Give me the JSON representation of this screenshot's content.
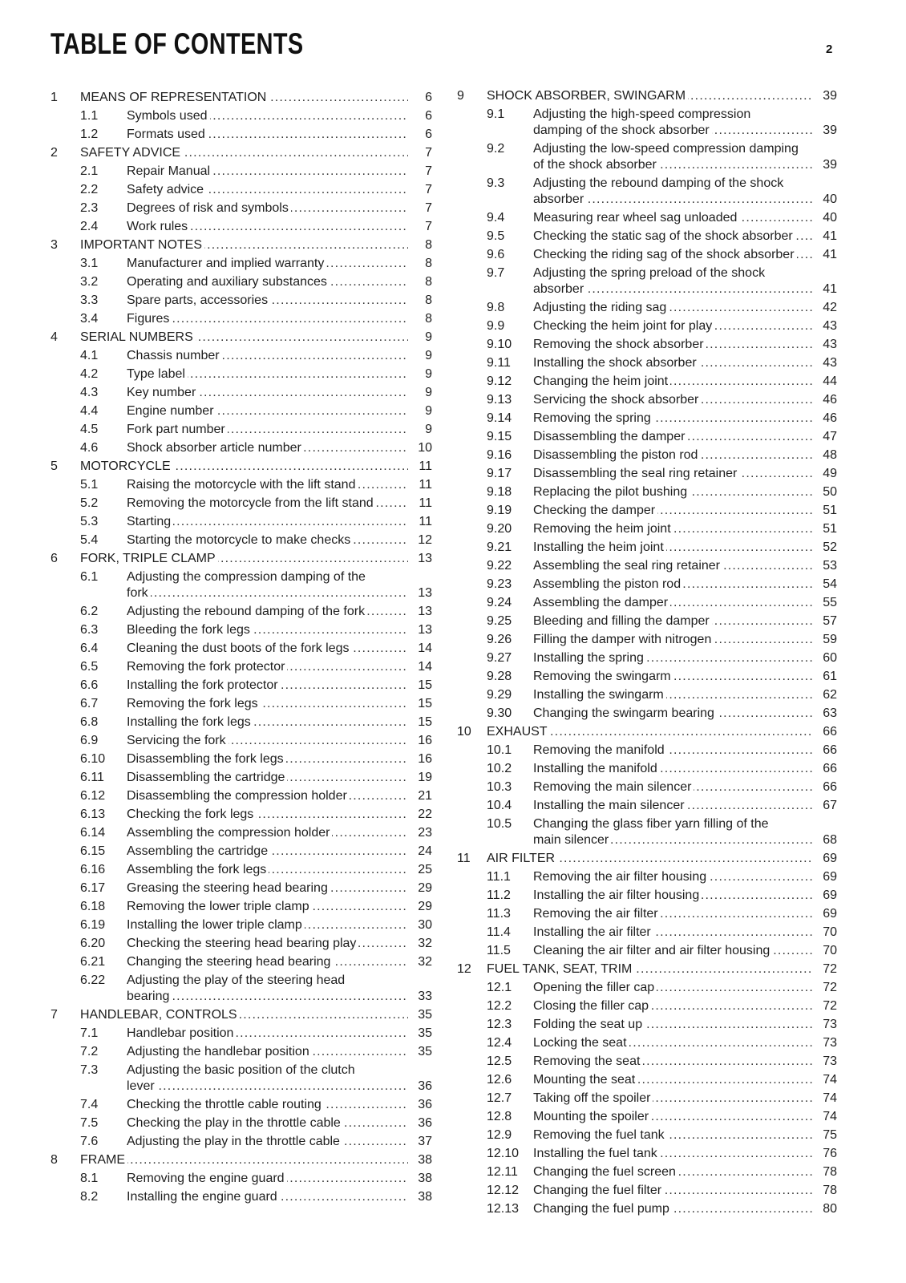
{
  "header": {
    "title": "TABLE OF CONTENTS",
    "page_number": "2"
  },
  "toc": {
    "left": [
      {
        "num": "1",
        "title": "MEANS OF REPRESENTATION",
        "page": "6",
        "level": 1
      },
      {
        "num": "1.1",
        "title": "Symbols used",
        "page": "6",
        "level": 2
      },
      {
        "num": "1.2",
        "title": "Formats used",
        "page": "6",
        "level": 2
      },
      {
        "num": "2",
        "title": "SAFETY ADVICE",
        "page": "7",
        "level": 1
      },
      {
        "num": "2.1",
        "title": "Repair Manual",
        "page": "7",
        "level": 2
      },
      {
        "num": "2.2",
        "title": "Safety advice",
        "page": "7",
        "level": 2
      },
      {
        "num": "2.3",
        "title": "Degrees of risk and symbols",
        "page": "7",
        "level": 2
      },
      {
        "num": "2.4",
        "title": "Work rules",
        "page": "7",
        "level": 2
      },
      {
        "num": "3",
        "title": "IMPORTANT NOTES",
        "page": "8",
        "level": 1
      },
      {
        "num": "3.1",
        "title": "Manufacturer and implied warranty",
        "page": "8",
        "level": 2
      },
      {
        "num": "3.2",
        "title": "Operating and auxiliary substances",
        "page": "8",
        "level": 2
      },
      {
        "num": "3.3",
        "title": "Spare parts, accessories",
        "page": "8",
        "level": 2
      },
      {
        "num": "3.4",
        "title": "Figures",
        "page": "8",
        "level": 2
      },
      {
        "num": "4",
        "title": "SERIAL NUMBERS",
        "page": "9",
        "level": 1
      },
      {
        "num": "4.1",
        "title": "Chassis number",
        "page": "9",
        "level": 2
      },
      {
        "num": "4.2",
        "title": "Type label",
        "page": "9",
        "level": 2
      },
      {
        "num": "4.3",
        "title": "Key number",
        "page": "9",
        "level": 2
      },
      {
        "num": "4.4",
        "title": "Engine number",
        "page": "9",
        "level": 2
      },
      {
        "num": "4.5",
        "title": "Fork part number",
        "page": "9",
        "level": 2
      },
      {
        "num": "4.6",
        "title": "Shock absorber article number",
        "page": "10",
        "level": 2
      },
      {
        "num": "5",
        "title": "MOTORCYCLE",
        "page": "11",
        "level": 1
      },
      {
        "num": "5.1",
        "title": "Raising the motorcycle with the lift stand",
        "page": "11",
        "level": 2
      },
      {
        "num": "5.2",
        "title": "Removing the motorcycle from the lift stand",
        "page": "11",
        "level": 2
      },
      {
        "num": "5.3",
        "title": "Starting",
        "page": "11",
        "level": 2
      },
      {
        "num": "5.4",
        "title": "Starting the motorcycle to make checks",
        "page": "12",
        "level": 2
      },
      {
        "num": "6",
        "title": "FORK, TRIPLE CLAMP",
        "page": "13",
        "level": 1
      },
      {
        "num": "6.1",
        "title": "Adjusting the compression damping of the\nfork",
        "page": "13",
        "level": 2
      },
      {
        "num": "6.2",
        "title": "Adjusting the rebound damping of the fork",
        "page": "13",
        "level": 2
      },
      {
        "num": "6.3",
        "title": "Bleeding the fork legs",
        "page": "13",
        "level": 2
      },
      {
        "num": "6.4",
        "title": "Cleaning the dust boots of the fork legs",
        "page": "14",
        "level": 2
      },
      {
        "num": "6.5",
        "title": "Removing the fork protector",
        "page": "14",
        "level": 2
      },
      {
        "num": "6.6",
        "title": "Installing the fork protector",
        "page": "15",
        "level": 2
      },
      {
        "num": "6.7",
        "title": "Removing the fork legs",
        "page": "15",
        "level": 2
      },
      {
        "num": "6.8",
        "title": "Installing the fork legs",
        "page": "15",
        "level": 2
      },
      {
        "num": "6.9",
        "title": "Servicing the fork",
        "page": "16",
        "level": 2
      },
      {
        "num": "6.10",
        "title": "Disassembling the fork legs",
        "page": "16",
        "level": 2
      },
      {
        "num": "6.11",
        "title": "Disassembling the cartridge",
        "page": "19",
        "level": 2
      },
      {
        "num": "6.12",
        "title": "Disassembling the compression holder",
        "page": "21",
        "level": 2
      },
      {
        "num": "6.13",
        "title": "Checking the fork legs",
        "page": "22",
        "level": 2
      },
      {
        "num": "6.14",
        "title": "Assembling the compression holder",
        "page": "23",
        "level": 2
      },
      {
        "num": "6.15",
        "title": "Assembling the cartridge",
        "page": "24",
        "level": 2
      },
      {
        "num": "6.16",
        "title": "Assembling the fork legs",
        "page": "25",
        "level": 2
      },
      {
        "num": "6.17",
        "title": "Greasing the steering head bearing",
        "page": "29",
        "level": 2
      },
      {
        "num": "6.18",
        "title": "Removing the lower triple clamp",
        "page": "29",
        "level": 2
      },
      {
        "num": "6.19",
        "title": "Installing the lower triple clamp",
        "page": "30",
        "level": 2
      },
      {
        "num": "6.20",
        "title": "Checking the steering head bearing play",
        "page": "32",
        "level": 2
      },
      {
        "num": "6.21",
        "title": "Changing the steering head bearing",
        "page": "32",
        "level": 2
      },
      {
        "num": "6.22",
        "title": "Adjusting the play of the steering head\nbearing",
        "page": "33",
        "level": 2
      },
      {
        "num": "7",
        "title": "HANDLEBAR, CONTROLS",
        "page": "35",
        "level": 1
      },
      {
        "num": "7.1",
        "title": "Handlebar position",
        "page": "35",
        "level": 2
      },
      {
        "num": "7.2",
        "title": "Adjusting the handlebar position",
        "page": "35",
        "level": 2
      },
      {
        "num": "7.3",
        "title": "Adjusting the basic position of the clutch\nlever",
        "page": "36",
        "level": 2
      },
      {
        "num": "7.4",
        "title": "Checking the throttle cable routing",
        "page": "36",
        "level": 2
      },
      {
        "num": "7.5",
        "title": "Checking the play in the throttle cable",
        "page": "36",
        "level": 2
      },
      {
        "num": "7.6",
        "title": "Adjusting the play in the throttle cable",
        "page": "37",
        "level": 2
      },
      {
        "num": "8",
        "title": "FRAME",
        "page": "38",
        "level": 1
      },
      {
        "num": "8.1",
        "title": "Removing the engine guard",
        "page": "38",
        "level": 2
      },
      {
        "num": "8.2",
        "title": "Installing the engine guard",
        "page": "38",
        "level": 2
      }
    ],
    "right": [
      {
        "num": "9",
        "title": "SHOCK ABSORBER, SWINGARM",
        "page": "39",
        "level": 1
      },
      {
        "num": "9.1",
        "title": "Adjusting the high-speed compression\ndamping of the shock absorber",
        "page": "39",
        "level": 2
      },
      {
        "num": "9.2",
        "title": "Adjusting the low-speed compression damping\nof the shock absorber",
        "page": "39",
        "level": 2
      },
      {
        "num": "9.3",
        "title": "Adjusting the rebound damping of the shock\nabsorber",
        "page": "40",
        "level": 2
      },
      {
        "num": "9.4",
        "title": "Measuring rear wheel sag unloaded",
        "page": "40",
        "level": 2
      },
      {
        "num": "9.5",
        "title": "Checking the static sag of the shock absorber",
        "page": "41",
        "level": 2
      },
      {
        "num": "9.6",
        "title": "Checking the riding sag of the shock absorber",
        "page": "41",
        "level": 2
      },
      {
        "num": "9.7",
        "title": "Adjusting the spring preload of the shock\nabsorber",
        "page": "41",
        "level": 2
      },
      {
        "num": "9.8",
        "title": "Adjusting the riding sag",
        "page": "42",
        "level": 2
      },
      {
        "num": "9.9",
        "title": "Checking the heim joint for play",
        "page": "43",
        "level": 2
      },
      {
        "num": "9.10",
        "title": "Removing the shock absorber",
        "page": "43",
        "level": 2
      },
      {
        "num": "9.11",
        "title": "Installing the shock absorber",
        "page": "43",
        "level": 2
      },
      {
        "num": "9.12",
        "title": "Changing the heim joint",
        "page": "44",
        "level": 2
      },
      {
        "num": "9.13",
        "title": "Servicing the shock absorber",
        "page": "46",
        "level": 2
      },
      {
        "num": "9.14",
        "title": "Removing the spring",
        "page": "46",
        "level": 2
      },
      {
        "num": "9.15",
        "title": "Disassembling the damper",
        "page": "47",
        "level": 2
      },
      {
        "num": "9.16",
        "title": "Disassembling the piston rod",
        "page": "48",
        "level": 2
      },
      {
        "num": "9.17",
        "title": "Disassembling the seal ring retainer",
        "page": "49",
        "level": 2
      },
      {
        "num": "9.18",
        "title": "Replacing the pilot bushing",
        "page": "50",
        "level": 2
      },
      {
        "num": "9.19",
        "title": "Checking the damper",
        "page": "51",
        "level": 2
      },
      {
        "num": "9.20",
        "title": "Removing the heim joint",
        "page": "51",
        "level": 2
      },
      {
        "num": "9.21",
        "title": "Installing the heim joint",
        "page": "52",
        "level": 2
      },
      {
        "num": "9.22",
        "title": "Assembling the seal ring retainer",
        "page": "53",
        "level": 2
      },
      {
        "num": "9.23",
        "title": "Assembling the piston rod",
        "page": "54",
        "level": 2
      },
      {
        "num": "9.24",
        "title": "Assembling the damper",
        "page": "55",
        "level": 2
      },
      {
        "num": "9.25",
        "title": "Bleeding and filling the damper",
        "page": "57",
        "level": 2
      },
      {
        "num": "9.26",
        "title": "Filling the damper with nitrogen",
        "page": "59",
        "level": 2
      },
      {
        "num": "9.27",
        "title": "Installing the spring",
        "page": "60",
        "level": 2
      },
      {
        "num": "9.28",
        "title": "Removing the swingarm",
        "page": "61",
        "level": 2
      },
      {
        "num": "9.29",
        "title": "Installing the swingarm",
        "page": "62",
        "level": 2
      },
      {
        "num": "9.30",
        "title": "Changing the swingarm bearing",
        "page": "63",
        "level": 2
      },
      {
        "num": "10",
        "title": "EXHAUST",
        "page": "66",
        "level": 1
      },
      {
        "num": "10.1",
        "title": "Removing the manifold",
        "page": "66",
        "level": 2
      },
      {
        "num": "10.2",
        "title": "Installing the manifold",
        "page": "66",
        "level": 2
      },
      {
        "num": "10.3",
        "title": "Removing the main silencer",
        "page": "66",
        "level": 2
      },
      {
        "num": "10.4",
        "title": "Installing the main silencer",
        "page": "67",
        "level": 2
      },
      {
        "num": "10.5",
        "title": "Changing the glass fiber yarn filling of the\nmain silencer",
        "page": "68",
        "level": 2
      },
      {
        "num": "11",
        "title": "AIR FILTER",
        "page": "69",
        "level": 1
      },
      {
        "num": "11.1",
        "title": "Removing the air filter housing",
        "page": "69",
        "level": 2
      },
      {
        "num": "11.2",
        "title": "Installing the air filter housing",
        "page": "69",
        "level": 2
      },
      {
        "num": "11.3",
        "title": "Removing the air filter",
        "page": "69",
        "level": 2
      },
      {
        "num": "11.4",
        "title": "Installing the air filter",
        "page": "70",
        "level": 2
      },
      {
        "num": "11.5",
        "title": "Cleaning the air filter and air filter housing",
        "page": "70",
        "level": 2
      },
      {
        "num": "12",
        "title": "FUEL TANK, SEAT, TRIM",
        "page": "72",
        "level": 1
      },
      {
        "num": "12.1",
        "title": "Opening the filler cap",
        "page": "72",
        "level": 2
      },
      {
        "num": "12.2",
        "title": "Closing the filler cap",
        "page": "72",
        "level": 2
      },
      {
        "num": "12.3",
        "title": "Folding the seat up",
        "page": "73",
        "level": 2
      },
      {
        "num": "12.4",
        "title": "Locking the seat",
        "page": "73",
        "level": 2
      },
      {
        "num": "12.5",
        "title": "Removing the seat",
        "page": "73",
        "level": 2
      },
      {
        "num": "12.6",
        "title": "Mounting the seat",
        "page": "74",
        "level": 2
      },
      {
        "num": "12.7",
        "title": "Taking off the spoiler",
        "page": "74",
        "level": 2
      },
      {
        "num": "12.8",
        "title": "Mounting the spoiler",
        "page": "74",
        "level": 2
      },
      {
        "num": "12.9",
        "title": "Removing the fuel tank",
        "page": "75",
        "level": 2
      },
      {
        "num": "12.10",
        "title": "Installing the fuel tank",
        "page": "76",
        "level": 2
      },
      {
        "num": "12.11",
        "title": "Changing the fuel screen",
        "page": "78",
        "level": 2
      },
      {
        "num": "12.12",
        "title": "Changing the fuel filter",
        "page": "78",
        "level": 2
      },
      {
        "num": "12.13",
        "title": "Changing the fuel pump",
        "page": "80",
        "level": 2
      }
    ]
  }
}
